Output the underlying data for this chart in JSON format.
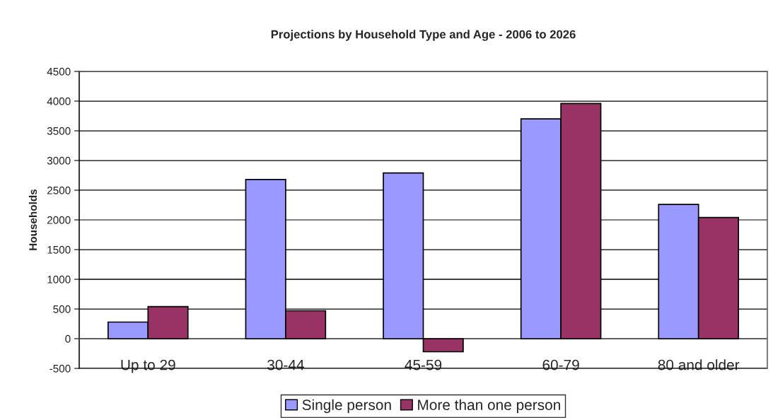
{
  "chart_data": {
    "type": "bar",
    "title": "Projections by Household Type and Age - 2006 to 2026",
    "ylabel": "Households",
    "categories": [
      "Up to 29",
      "30-44",
      "45-59",
      "60-79",
      "80 and older"
    ],
    "series": [
      {
        "name": "Single person",
        "color": "#9999ff",
        "values": [
          280,
          2680,
          2790,
          3700,
          2260
        ]
      },
      {
        "name": "More than one person",
        "color": "#993366",
        "values": [
          540,
          470,
          -220,
          3960,
          2040
        ]
      }
    ],
    "ylim": [
      -500,
      4500
    ],
    "yticks": [
      -500,
      0,
      500,
      1000,
      1500,
      2000,
      2500,
      3000,
      3500,
      4000,
      4500
    ],
    "grid": "y",
    "legend": "bottom"
  }
}
